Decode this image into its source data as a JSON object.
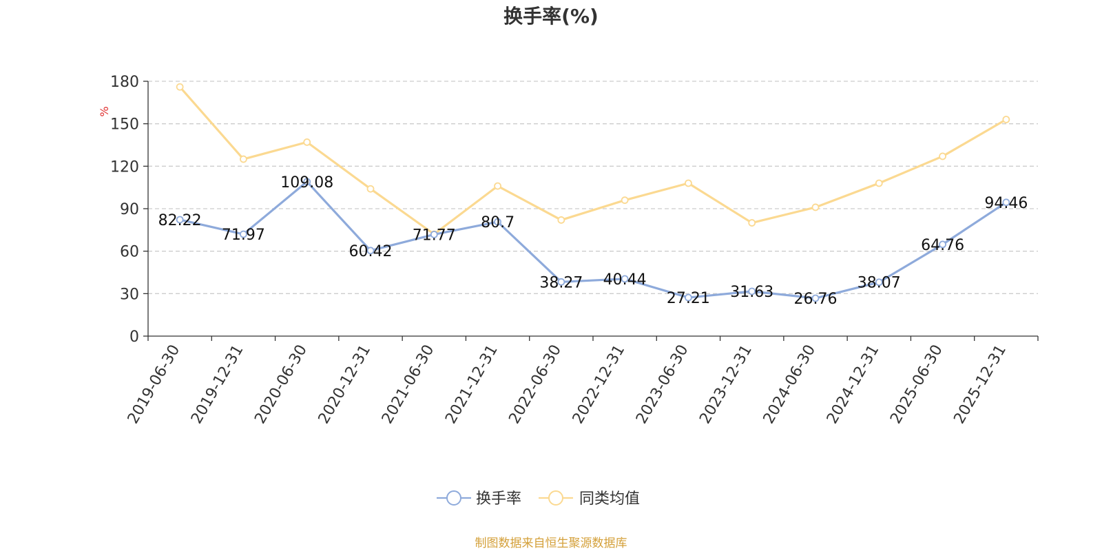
{
  "chart_data": {
    "type": "line",
    "title": "换手率(%)",
    "ylabel": "%",
    "xlabel": "",
    "ylim": [
      0,
      180
    ],
    "yticks": [
      0,
      30,
      60,
      90,
      120,
      150,
      180
    ],
    "grid": true,
    "legend_position": "bottom-center",
    "categories": [
      "2019-06-30",
      "2019-12-31",
      "2020-06-30",
      "2020-12-31",
      "2021-06-30",
      "2021-12-31",
      "2022-06-30",
      "2022-12-31",
      "2023-06-30",
      "2023-12-31",
      "2024-06-30",
      "2024-12-31",
      "2025-06-30",
      "2025-12-31"
    ],
    "series": [
      {
        "name": "换手率",
        "color": "#8eaadb",
        "values": [
          82.22,
          71.97,
          109.08,
          60.42,
          71.77,
          80.7,
          38.27,
          40.44,
          27.21,
          31.63,
          26.76,
          38.07,
          64.76,
          94.46
        ],
        "data_labels": [
          "82.22",
          "71.97",
          "109.08",
          "60.42",
          "71.77",
          "80.7",
          "38.27",
          "40.44",
          "27.21",
          "31.63",
          "26.76",
          "38.07",
          "64.76",
          "94.46"
        ]
      },
      {
        "name": "同类均值",
        "color": "#fbd991",
        "values": [
          176,
          125,
          137,
          104,
          72,
          106,
          82,
          96,
          108,
          80,
          91,
          108,
          127,
          153
        ]
      }
    ]
  },
  "colors": {
    "axis": "#333333",
    "grid": "#cccccc",
    "unit_label": "#e03030",
    "source_text": "#d4a03a"
  },
  "footer": {
    "source": "制图数据来自恒生聚源数据库"
  }
}
